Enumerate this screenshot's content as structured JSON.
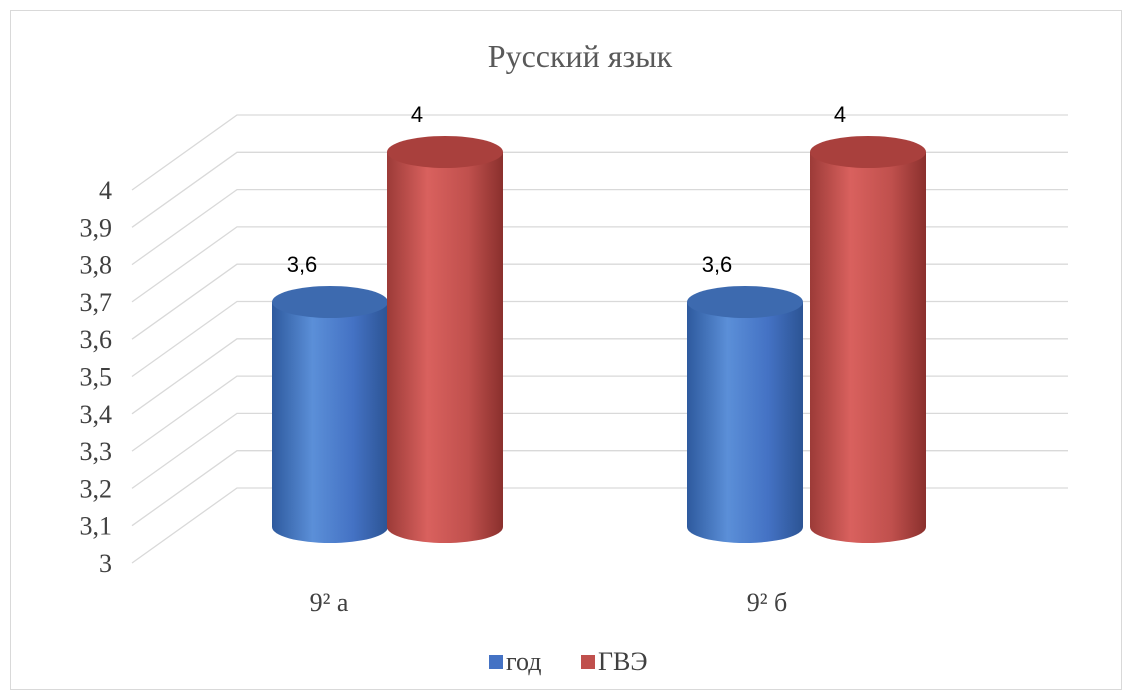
{
  "chart_data": {
    "type": "bar",
    "title": "Русский язык",
    "categories": [
      "9² а",
      "9² б"
    ],
    "series": [
      {
        "name": "год",
        "values": [
          3.6,
          3.6
        ],
        "labels": [
          "3,6",
          "3,6"
        ],
        "color": "#4472c4"
      },
      {
        "name": "ГВЭ",
        "values": [
          4,
          4
        ],
        "labels": [
          "4",
          "4"
        ],
        "color": "#c0504d"
      }
    ],
    "ylim": [
      3,
      4
    ],
    "yticks": [
      "3",
      "3,1",
      "3,2",
      "3,3",
      "3,4",
      "3,5",
      "3,6",
      "3,7",
      "3,8",
      "3,9",
      "4"
    ],
    "grid": true,
    "legend": "bottom",
    "style": "3d-cylinder"
  }
}
